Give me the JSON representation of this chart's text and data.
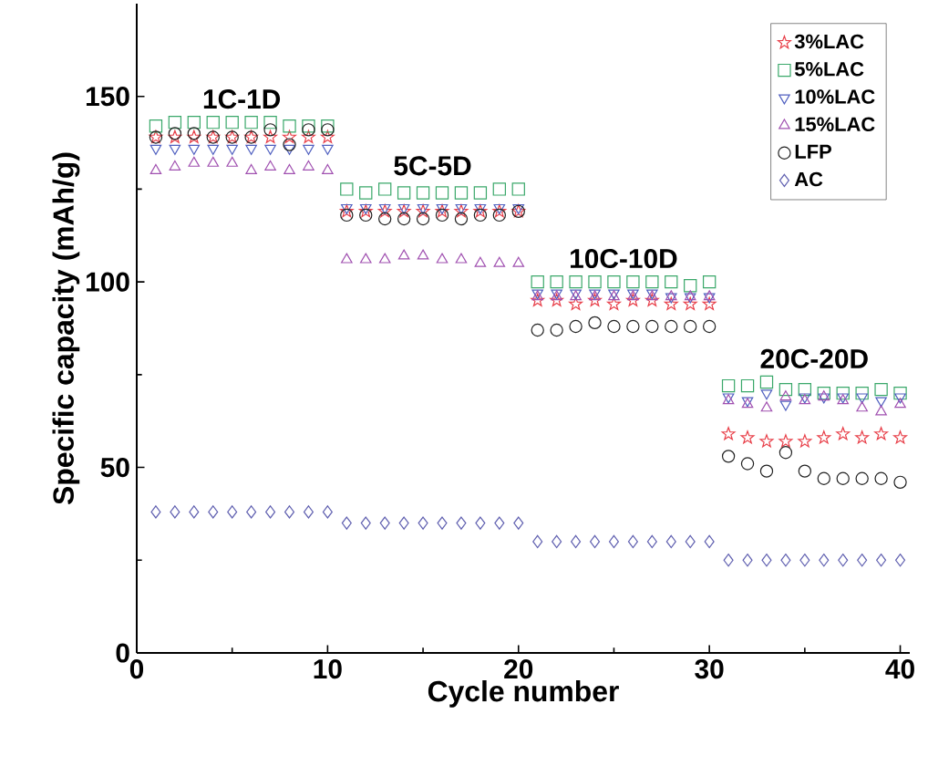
{
  "chart_data": {
    "type": "scatter",
    "xlabel": "Cycle number",
    "ylabel": "Specific capacity (mAh/g)",
    "x": [
      1,
      2,
      3,
      4,
      5,
      6,
      7,
      8,
      9,
      10,
      11,
      12,
      13,
      14,
      15,
      16,
      17,
      18,
      19,
      20,
      21,
      22,
      23,
      24,
      25,
      26,
      27,
      28,
      29,
      30,
      31,
      32,
      33,
      34,
      35,
      36,
      37,
      38,
      39,
      40
    ],
    "xlim": [
      0,
      40.5
    ],
    "ylim": [
      0,
      175
    ],
    "xticks": [
      0,
      10,
      20,
      30,
      40
    ],
    "yticks": [
      0,
      50,
      100,
      150
    ],
    "legend": "top right",
    "grid": false,
    "series": [
      {
        "name": "3%LAC",
        "color": "#e8404a",
        "marker": "star",
        "values": [
          139,
          139,
          139,
          139,
          139,
          139,
          139,
          139,
          139,
          139,
          119,
          119,
          119,
          119,
          119,
          119,
          119,
          119,
          119,
          119,
          95,
          95,
          94,
          95,
          94,
          95,
          95,
          94,
          94,
          94,
          59,
          58,
          57,
          57,
          57,
          58,
          59,
          58,
          59,
          58
        ]
      },
      {
        "name": "5%LAC",
        "color": "#3aa86a",
        "marker": "square",
        "values": [
          142,
          143,
          143,
          143,
          143,
          143,
          143,
          142,
          142,
          142,
          125,
          124,
          125,
          124,
          124,
          124,
          124,
          124,
          125,
          125,
          100,
          100,
          100,
          100,
          100,
          100,
          100,
          100,
          99,
          100,
          72,
          72,
          73,
          71,
          71,
          70,
          70,
          70,
          71,
          70
        ]
      },
      {
        "name": "10%LAC",
        "color": "#5060c0",
        "marker": "triangle_down",
        "values": [
          136,
          136,
          136,
          136,
          136,
          136,
          136,
          136,
          136,
          136,
          120,
          120,
          120,
          120,
          120,
          120,
          120,
          120,
          120,
          120,
          97,
          97,
          97,
          97,
          97,
          97,
          97,
          96,
          96,
          96,
          69,
          68,
          70,
          67,
          69,
          69,
          69,
          69,
          68,
          69
        ]
      },
      {
        "name": "15%LAC",
        "color": "#a050b0",
        "marker": "triangle",
        "values": [
          130,
          131,
          132,
          132,
          132,
          130,
          131,
          130,
          131,
          130,
          106,
          106,
          106,
          107,
          107,
          106,
          106,
          105,
          105,
          105,
          96,
          96,
          96,
          96,
          96,
          96,
          96,
          96,
          96,
          96,
          68,
          67,
          66,
          69,
          68,
          69,
          68,
          66,
          65,
          67
        ]
      },
      {
        "name": "LFP",
        "color": "#222222",
        "marker": "circle",
        "values": [
          139,
          140,
          140,
          139,
          139,
          139,
          141,
          137,
          141,
          141,
          118,
          118,
          117,
          117,
          117,
          118,
          117,
          118,
          118,
          119,
          87,
          87,
          88,
          89,
          88,
          88,
          88,
          88,
          88,
          88,
          53,
          51,
          49,
          54,
          49,
          47,
          47,
          47,
          47,
          46
        ]
      },
      {
        "name": "AC",
        "color": "#6060b0",
        "marker": "diamond",
        "values": [
          38,
          38,
          38,
          38,
          38,
          38,
          38,
          38,
          38,
          38,
          35,
          35,
          35,
          35,
          35,
          35,
          35,
          35,
          35,
          35,
          30,
          30,
          30,
          30,
          30,
          30,
          30,
          30,
          30,
          30,
          25,
          25,
          25,
          25,
          25,
          25,
          25,
          25,
          25,
          25
        ]
      }
    ],
    "annotations": [
      "1C-1D",
      "5C-5D",
      "10C-10D",
      "20C-20D"
    ]
  }
}
